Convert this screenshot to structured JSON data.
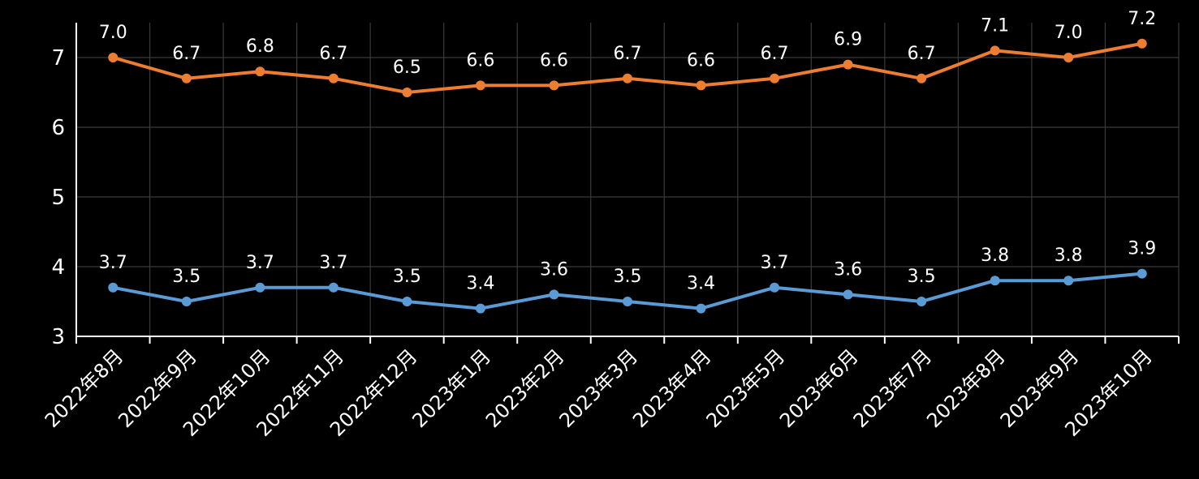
{
  "chart_data": {
    "type": "line",
    "title": "",
    "xlabel": "",
    "ylabel": "",
    "ylim": [
      3,
      7.5
    ],
    "yticks": [
      3,
      4,
      5,
      6,
      7
    ],
    "grid": true,
    "legend": "none",
    "categories": [
      "2022年8月",
      "2022年9月",
      "2022年10月",
      "2022年11月",
      "2022年12月",
      "2023年1月",
      "2023年2月",
      "2023年3月",
      "2023年4月",
      "2023年5月",
      "2023年6月",
      "2023年7月",
      "2023年8月",
      "2023年9月",
      "2023年10月"
    ],
    "series": [
      {
        "color": "#ED7D31",
        "values": [
          7.0,
          6.7,
          6.8,
          6.7,
          6.5,
          6.6,
          6.6,
          6.7,
          6.6,
          6.7,
          6.9,
          6.7,
          7.1,
          7.0,
          7.2
        ],
        "labels": [
          "7.0",
          "6.7",
          "6.8",
          "6.7",
          "6.5",
          "6.6",
          "6.6",
          "6.7",
          "6.6",
          "6.7",
          "6.9",
          "6.7",
          "7.1",
          "7.0",
          "7.2"
        ]
      },
      {
        "color": "#5B9BD5",
        "values": [
          3.7,
          3.5,
          3.7,
          3.7,
          3.5,
          3.4,
          3.6,
          3.5,
          3.4,
          3.7,
          3.6,
          3.5,
          3.8,
          3.8,
          3.9
        ],
        "labels": [
          "3.7",
          "3.5",
          "3.7",
          "3.7",
          "3.5",
          "3.4",
          "3.6",
          "3.5",
          "3.4",
          "3.7",
          "3.6",
          "3.5",
          "3.8",
          "3.8",
          "3.9"
        ]
      }
    ],
    "colors": {
      "background": "#000000",
      "axis": "#ffffff",
      "grid": "#3a3a3a",
      "text": "#ffffff"
    }
  }
}
